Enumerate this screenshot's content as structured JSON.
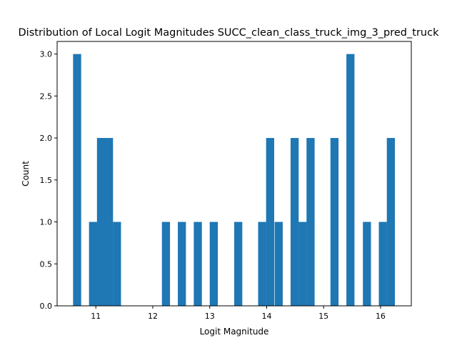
{
  "chart_data": {
    "type": "bar",
    "title": "Distribution of Local Logit Magnitudes SUCC_clean_class_truck_img_3_pred_truck",
    "xlabel": "Logit Magnitude",
    "ylabel": "Count",
    "xlim": [
      10.32,
      16.54
    ],
    "ylim": [
      0,
      3.15
    ],
    "grid": false,
    "bar_color": "#1f77b4",
    "bin_width": 0.142,
    "x_ticks": [
      {
        "value": 11,
        "label": "11"
      },
      {
        "value": 12,
        "label": "12"
      },
      {
        "value": 13,
        "label": "13"
      },
      {
        "value": 14,
        "label": "14"
      },
      {
        "value": 15,
        "label": "15"
      },
      {
        "value": 16,
        "label": "16"
      }
    ],
    "y_ticks": [
      {
        "value": 0,
        "label": "0.0"
      },
      {
        "value": 0.5,
        "label": "0.5"
      },
      {
        "value": 1,
        "label": "1.0"
      },
      {
        "value": 1.5,
        "label": "1.5"
      },
      {
        "value": 2,
        "label": "2.0"
      },
      {
        "value": 2.5,
        "label": "2.5"
      },
      {
        "value": 3,
        "label": "3.0"
      }
    ],
    "bins": [
      {
        "start": 10.6,
        "count": 3
      },
      {
        "start": 10.88,
        "count": 1
      },
      {
        "start": 11.02,
        "count": 2
      },
      {
        "start": 11.16,
        "count": 2
      },
      {
        "start": 11.3,
        "count": 1
      },
      {
        "start": 12.16,
        "count": 1
      },
      {
        "start": 12.44,
        "count": 1
      },
      {
        "start": 12.72,
        "count": 1
      },
      {
        "start": 13.0,
        "count": 1
      },
      {
        "start": 13.43,
        "count": 1
      },
      {
        "start": 13.85,
        "count": 1
      },
      {
        "start": 13.99,
        "count": 2
      },
      {
        "start": 14.14,
        "count": 1
      },
      {
        "start": 14.42,
        "count": 2
      },
      {
        "start": 14.56,
        "count": 1
      },
      {
        "start": 14.7,
        "count": 2
      },
      {
        "start": 15.12,
        "count": 2
      },
      {
        "start": 15.4,
        "count": 3
      },
      {
        "start": 15.69,
        "count": 1
      },
      {
        "start": 15.97,
        "count": 1
      },
      {
        "start": 16.11,
        "count": 2
      }
    ]
  }
}
